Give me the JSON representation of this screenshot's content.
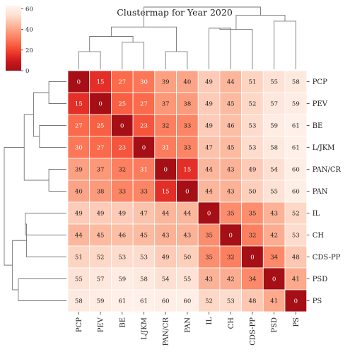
{
  "chart_data": {
    "type": "heatmap",
    "title": "Clustermap for Year 2020",
    "labels": [
      "PCP",
      "PEV",
      "BE",
      "L/JKM",
      "PAN/CR",
      "PAN",
      "IL",
      "CH",
      "CDS-PP",
      "PSD",
      "PS"
    ],
    "values": [
      [
        0,
        15,
        27,
        30,
        39,
        40,
        49,
        44,
        51,
        55,
        58
      ],
      [
        15,
        0,
        25,
        27,
        37,
        38,
        49,
        45,
        52,
        57,
        59
      ],
      [
        27,
        25,
        0,
        23,
        32,
        33,
        49,
        46,
        53,
        59,
        61
      ],
      [
        30,
        27,
        23,
        0,
        31,
        33,
        47,
        45,
        53,
        58,
        61
      ],
      [
        39,
        37,
        32,
        31,
        0,
        15,
        44,
        43,
        49,
        54,
        60
      ],
      [
        40,
        38,
        33,
        33,
        15,
        0,
        44,
        43,
        50,
        55,
        60
      ],
      [
        49,
        49,
        49,
        47,
        44,
        44,
        0,
        35,
        35,
        43,
        52
      ],
      [
        44,
        45,
        46,
        45,
        43,
        43,
        35,
        0,
        32,
        42,
        53
      ],
      [
        51,
        52,
        53,
        53,
        49,
        50,
        35,
        32,
        0,
        34,
        48
      ],
      [
        55,
        57,
        59,
        58,
        54,
        55,
        43,
        42,
        34,
        0,
        41
      ],
      [
        58,
        59,
        61,
        61,
        60,
        60,
        52,
        53,
        48,
        41,
        0
      ]
    ],
    "colorbar": {
      "ticks": [
        0,
        20,
        40,
        60
      ],
      "range": [
        0,
        63
      ],
      "colors": [
        "#a50f15",
        "#cb181d",
        "#ef3b2c",
        "#fb6a4a",
        "#fc9272",
        "#fcbba1",
        "#fee0d2",
        "#fff5f0"
      ]
    },
    "dendrogram": {
      "row_linkage": [
        [
          0,
          1,
          15
        ],
        [
          4,
          5,
          15
        ],
        [
          2,
          3,
          23
        ],
        [
          11,
          13,
          28
        ],
        [
          12,
          14,
          36
        ],
        [
          6,
          7,
          35
        ],
        [
          8,
          16,
          34
        ],
        [
          9,
          10,
          41
        ],
        [
          17,
          18,
          46
        ],
        [
          15,
          19,
          53
        ]
      ],
      "col_linkage": [
        [
          0,
          1,
          15
        ],
        [
          4,
          5,
          15
        ],
        [
          2,
          3,
          23
        ],
        [
          11,
          13,
          28
        ],
        [
          12,
          14,
          36
        ],
        [
          6,
          7,
          35
        ],
        [
          8,
          16,
          34
        ],
        [
          9,
          10,
          41
        ],
        [
          17,
          18,
          46
        ],
        [
          15,
          19,
          53
        ]
      ]
    }
  }
}
